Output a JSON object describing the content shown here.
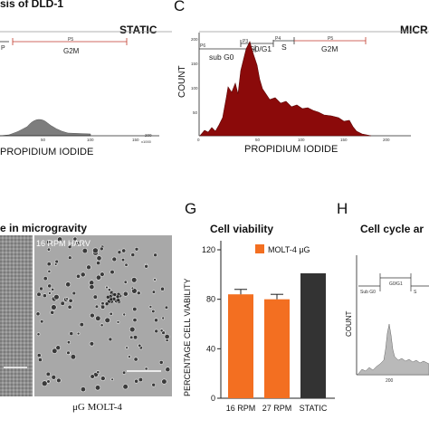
{
  "top_left": {
    "title": "sis of DLD-1",
    "condition": "STATIC",
    "gates": [
      "G2M",
      "P5"
    ],
    "gate_left_fragment": "P",
    "xlabel": "PROPIDIUM IODIDE",
    "x_ticks": [
      "50",
      "100",
      "150",
      "200"
    ],
    "x_unit": "x1000"
  },
  "panel_c": {
    "letter": "C",
    "condition": "MICR",
    "ylabel": "COUNT",
    "xlabel": "PROPIDIUM IODIDE",
    "gates": [
      "P6",
      "sub G0",
      "P3",
      "G0/G1",
      "P4",
      "S",
      "P5",
      "G2M"
    ],
    "y_ticks": [
      "200",
      "150",
      "100",
      "50"
    ],
    "x_ticks": [
      "0",
      "50",
      "100",
      "150",
      "200"
    ]
  },
  "panel_f": {
    "title": "e in microgravity",
    "image_label": "16 RPM HARV",
    "caption": "μG MOLT-4"
  },
  "panel_g": {
    "letter": "G",
    "title": "Cell viability",
    "ylabel": "PERCENTAGE CELL VIABILITY",
    "legend": "MOLT-4 μG",
    "y_ticks": [
      "0",
      "40",
      "80",
      "120"
    ]
  },
  "panel_h": {
    "letter": "H",
    "title": "Cell cycle ar",
    "ylabel": "COUNT",
    "gates": [
      "Sub G0",
      "G0/G1",
      "S"
    ],
    "x_ticks": [
      "200"
    ]
  },
  "colors": {
    "dark_red": "#8b0a0a",
    "orange": "#f36f21",
    "dark_gray": "#333333",
    "gray_fill": "#b9b9b9",
    "gate_red": "#c0392b"
  },
  "chart_data": {
    "type": "bar",
    "title": "Cell viability",
    "categories": [
      "16 RPM",
      "27 RPM",
      "STATIC"
    ],
    "values": [
      84,
      80,
      101
    ],
    "errors": [
      4,
      4,
      0
    ],
    "ylabel": "PERCENTAGE CELL VIABILITY",
    "ylim": [
      0,
      120
    ],
    "y_ticks": [
      0,
      40,
      80,
      120
    ],
    "legend": "MOLT-4 μG",
    "legend_position": "top-right",
    "bar_colors": [
      "#f36f21",
      "#f36f21",
      "#333333"
    ]
  }
}
